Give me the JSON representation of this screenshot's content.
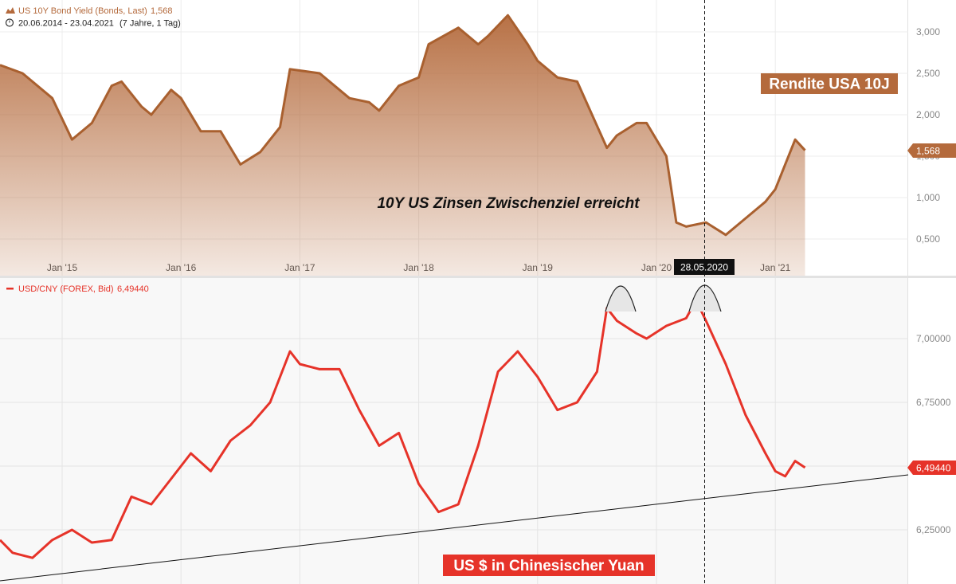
{
  "chart_data": [
    {
      "type": "area",
      "series_name": "US 10Y Bond Yield (Bonds, Last)",
      "last_value": "1,568",
      "period": "20.06.2014 - 23.04.2021",
      "period_note": "(7 Jahre, 1 Tag)",
      "label_box": "Rendite USA 10J",
      "annotation": "10Y US Zinsen Zwischenziel erreicht",
      "x_ticks": [
        "Jan '15",
        "Jan '16",
        "Jan '17",
        "Jan '18",
        "Jan '19",
        "Jan '20",
        "Jan '21"
      ],
      "y_ticks": [
        "0,500",
        "1,000",
        "1,500",
        "2,000",
        "2,500",
        "3,000"
      ],
      "ylim": [
        0,
        3.3
      ],
      "x": [
        "2014-06",
        "2014-09",
        "2014-12",
        "2015-02",
        "2015-04",
        "2015-06",
        "2015-07",
        "2015-09",
        "2015-10",
        "2015-12",
        "2016-01",
        "2016-03",
        "2016-05",
        "2016-07",
        "2016-09",
        "2016-11",
        "2016-12",
        "2017-03",
        "2017-06",
        "2017-08",
        "2017-09",
        "2017-11",
        "2018-01",
        "2018-02",
        "2018-05",
        "2018-07",
        "2018-08",
        "2018-10",
        "2018-12",
        "2019-01",
        "2019-03",
        "2019-05",
        "2019-08",
        "2019-09",
        "2019-11",
        "2019-12",
        "2020-02",
        "2020-03",
        "2020-04",
        "2020-06",
        "2020-08",
        "2020-10",
        "2020-12",
        "2021-01",
        "2021-02",
        "2021-03",
        "2021-04"
      ],
      "values": [
        2.6,
        2.5,
        2.2,
        1.7,
        1.9,
        2.35,
        2.4,
        2.1,
        2.0,
        2.3,
        2.2,
        1.8,
        1.8,
        1.4,
        1.55,
        1.85,
        2.55,
        2.5,
        2.2,
        2.15,
        2.05,
        2.35,
        2.45,
        2.85,
        3.05,
        2.85,
        2.95,
        3.2,
        2.85,
        2.65,
        2.45,
        2.4,
        1.6,
        1.75,
        1.9,
        1.9,
        1.5,
        0.7,
        0.65,
        0.7,
        0.55,
        0.75,
        0.95,
        1.1,
        1.4,
        1.7,
        1.57
      ]
    },
    {
      "type": "line",
      "series_name": "USD/CNY (FOREX, Bid)",
      "last_value": "6,49440",
      "label_box": "US $ in Chinesischer Yuan",
      "y_ticks": [
        "6,25000",
        "6,50000",
        "6,75000",
        "7,00000"
      ],
      "ylim": [
        6.045,
        7.2
      ],
      "crosshair_date": "28.05.2020",
      "x": [
        "2014-06",
        "2014-08",
        "2014-10",
        "2014-12",
        "2015-02",
        "2015-04",
        "2015-06",
        "2015-08",
        "2015-10",
        "2015-12",
        "2016-02",
        "2016-04",
        "2016-06",
        "2016-08",
        "2016-10",
        "2016-12",
        "2017-01",
        "2017-03",
        "2017-05",
        "2017-07",
        "2017-09",
        "2017-11",
        "2018-01",
        "2018-03",
        "2018-05",
        "2018-07",
        "2018-09",
        "2018-11",
        "2019-01",
        "2019-03",
        "2019-05",
        "2019-07",
        "2019-08",
        "2019-09",
        "2019-11",
        "2019-12",
        "2020-02",
        "2020-04",
        "2020-05",
        "2020-06",
        "2020-08",
        "2020-10",
        "2020-12",
        "2021-01",
        "2021-02",
        "2021-03",
        "2021-04"
      ],
      "values": [
        6.21,
        6.16,
        6.14,
        6.21,
        6.25,
        6.2,
        6.21,
        6.38,
        6.35,
        6.45,
        6.55,
        6.48,
        6.6,
        6.66,
        6.75,
        6.95,
        6.9,
        6.88,
        6.88,
        6.72,
        6.58,
        6.63,
        6.43,
        6.32,
        6.35,
        6.58,
        6.87,
        6.95,
        6.85,
        6.72,
        6.75,
        6.87,
        7.12,
        7.07,
        7.02,
        7.0,
        7.05,
        7.08,
        7.15,
        7.07,
        6.9,
        6.7,
        6.55,
        6.48,
        6.46,
        6.52,
        6.494
      ]
    }
  ],
  "trendline_label": ""
}
